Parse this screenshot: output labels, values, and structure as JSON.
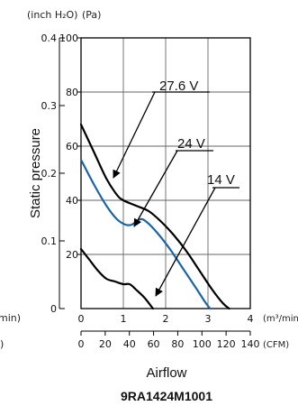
{
  "chart_data": {
    "type": "line",
    "model": "9RA1424M1001",
    "xlabel": "Airflow",
    "ylabel": "Static pressure",
    "unit_inh2o": "(inch H₂O)",
    "unit_pa": "(Pa)",
    "unit_m3min": "(m³/min)",
    "unit_cfm": "(CFM)",
    "clipped_left_unit_a": "min)",
    "clipped_left_unit_b": ")",
    "xlim": [
      0,
      4
    ],
    "ylim": [
      0,
      100
    ],
    "x_ticks_m3min": [
      {
        "v": 0,
        "label": "0"
      },
      {
        "v": 1,
        "label": "1"
      },
      {
        "v": 2,
        "label": "2"
      },
      {
        "v": 3,
        "label": "3"
      },
      {
        "v": 4,
        "label": "4"
      }
    ],
    "x_ticks_cfm": [
      {
        "v": 0,
        "label": "0"
      },
      {
        "v": 20,
        "label": "20"
      },
      {
        "v": 40,
        "label": "40"
      },
      {
        "v": 60,
        "label": "60"
      },
      {
        "v": 80,
        "label": "80"
      },
      {
        "v": 100,
        "label": "100"
      },
      {
        "v": 120,
        "label": "120"
      },
      {
        "v": 140,
        "label": "140"
      }
    ],
    "y_ticks_pa": [
      {
        "v": 20,
        "label": "20"
      },
      {
        "v": 40,
        "label": "40"
      },
      {
        "v": 60,
        "label": "60"
      },
      {
        "v": 80,
        "label": "80"
      },
      {
        "v": 100,
        "label": "100"
      }
    ],
    "y_ticks_inh2o": [
      {
        "v": 0,
        "label": "0"
      },
      {
        "v": 0.1,
        "label": "0.1"
      },
      {
        "v": 0.2,
        "label": "0.2"
      },
      {
        "v": 0.3,
        "label": "0.3"
      },
      {
        "v": 0.4,
        "label": "0.4"
      }
    ],
    "grid": true,
    "series": [
      {
        "name": "27.6 V",
        "color": "#000000",
        "points": [
          [
            0,
            68
          ],
          [
            0.3,
            58
          ],
          [
            0.6,
            48
          ],
          [
            0.85,
            42
          ],
          [
            1.0,
            40
          ],
          [
            1.3,
            38
          ],
          [
            1.6,
            36
          ],
          [
            1.9,
            32
          ],
          [
            2.2,
            27
          ],
          [
            2.5,
            21
          ],
          [
            2.8,
            14
          ],
          [
            3.1,
            7
          ],
          [
            3.35,
            2
          ],
          [
            3.5,
            0
          ]
        ]
      },
      {
        "name": "24 V",
        "color": "#1a64a8",
        "points": [
          [
            0,
            55
          ],
          [
            0.3,
            46
          ],
          [
            0.6,
            38
          ],
          [
            0.85,
            33
          ],
          [
            1.05,
            31
          ],
          [
            1.2,
            31
          ],
          [
            1.4,
            33
          ],
          [
            1.55,
            32
          ],
          [
            1.8,
            28
          ],
          [
            2.1,
            22
          ],
          [
            2.4,
            15
          ],
          [
            2.7,
            8
          ],
          [
            2.95,
            2
          ],
          [
            3.05,
            0
          ]
        ]
      },
      {
        "name": "14 V",
        "color": "#000000",
        "points": [
          [
            0,
            22
          ],
          [
            0.2,
            18
          ],
          [
            0.4,
            14
          ],
          [
            0.6,
            11
          ],
          [
            0.8,
            10
          ],
          [
            1.0,
            9
          ],
          [
            1.15,
            9
          ],
          [
            1.3,
            7
          ],
          [
            1.5,
            4
          ],
          [
            1.65,
            1
          ],
          [
            1.7,
            0
          ]
        ]
      }
    ]
  }
}
